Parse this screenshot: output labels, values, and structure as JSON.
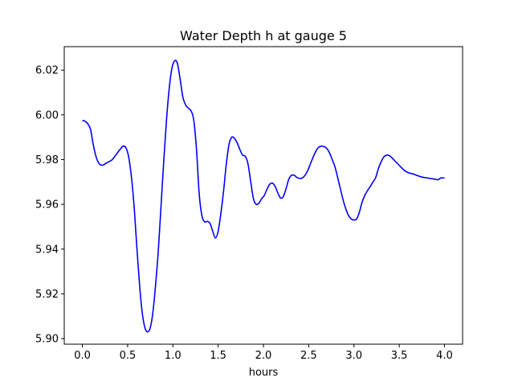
{
  "chart_data": {
    "type": "line",
    "title": "Water Depth h at gauge 5",
    "xlabel": "hours",
    "ylabel": "",
    "xlim": [
      -0.2,
      4.2
    ],
    "ylim": [
      5.8975,
      6.0305
    ],
    "xticks": [
      0.0,
      0.5,
      1.0,
      1.5,
      2.0,
      2.5,
      3.0,
      3.5,
      4.0
    ],
    "xtick_labels": [
      "0.0",
      "0.5",
      "1.0",
      "1.5",
      "2.0",
      "2.5",
      "3.0",
      "3.5",
      "4.0"
    ],
    "yticks": [
      5.9,
      5.92,
      5.94,
      5.96,
      5.98,
      6.0,
      6.02
    ],
    "ytick_labels": [
      "5.90",
      "5.92",
      "5.94",
      "5.96",
      "5.98",
      "6.00",
      "6.02"
    ],
    "grid": false,
    "series": [
      {
        "color": "#0000ff",
        "x": [
          0.0,
          0.03,
          0.06,
          0.09,
          0.12,
          0.15,
          0.18,
          0.21,
          0.24,
          0.27,
          0.3,
          0.33,
          0.36,
          0.39,
          0.42,
          0.45,
          0.48,
          0.51,
          0.54,
          0.57,
          0.6,
          0.63,
          0.66,
          0.69,
          0.72,
          0.75,
          0.78,
          0.81,
          0.84,
          0.87,
          0.9,
          0.93,
          0.96,
          0.99,
          1.02,
          1.05,
          1.08,
          1.11,
          1.14,
          1.17,
          1.2,
          1.23,
          1.26,
          1.29,
          1.32,
          1.35,
          1.38,
          1.41,
          1.44,
          1.47,
          1.5,
          1.53,
          1.56,
          1.59,
          1.62,
          1.65,
          1.68,
          1.71,
          1.74,
          1.77,
          1.8,
          1.83,
          1.86,
          1.89,
          1.92,
          1.95,
          1.98,
          2.01,
          2.04,
          2.07,
          2.1,
          2.13,
          2.16,
          2.19,
          2.22,
          2.25,
          2.28,
          2.31,
          2.34,
          2.37,
          2.4,
          2.43,
          2.46,
          2.49,
          2.52,
          2.55,
          2.58,
          2.61,
          2.64,
          2.67,
          2.7,
          2.73,
          2.76,
          2.79,
          2.82,
          2.85,
          2.88,
          2.91,
          2.94,
          2.97,
          3.0,
          3.03,
          3.06,
          3.09,
          3.12,
          3.15,
          3.18,
          3.21,
          3.24,
          3.27,
          3.3,
          3.33,
          3.36,
          3.39,
          3.42,
          3.45,
          3.48,
          3.51,
          3.54,
          3.57,
          3.6,
          3.63,
          3.66,
          3.69,
          3.72,
          3.75,
          3.78,
          3.81,
          3.84,
          3.87,
          3.9,
          3.93,
          3.96,
          3.99,
          4.0
        ],
        "y": [
          5.9975,
          5.9972,
          5.996,
          5.9935,
          5.9868,
          5.9815,
          5.9785,
          5.9775,
          5.9778,
          5.9786,
          5.9792,
          5.98,
          5.9815,
          5.9832,
          5.9847,
          5.986,
          5.9854,
          5.9815,
          5.973,
          5.96,
          5.942,
          5.925,
          5.912,
          5.905,
          5.903,
          5.9048,
          5.912,
          5.9245,
          5.94,
          5.96,
          5.98,
          5.998,
          6.012,
          6.021,
          6.0242,
          6.023,
          6.016,
          6.008,
          6.0045,
          6.003,
          6.0018,
          5.9978,
          5.985,
          5.965,
          5.955,
          5.9522,
          5.9524,
          5.9515,
          5.948,
          5.945,
          5.948,
          5.956,
          5.966,
          5.978,
          5.9868,
          5.99,
          5.9895,
          5.9875,
          5.9845,
          5.982,
          5.9815,
          5.978,
          5.97,
          5.9625,
          5.96,
          5.9605,
          5.9625,
          5.964,
          5.9668,
          5.969,
          5.9695,
          5.968,
          5.965,
          5.9628,
          5.9635,
          5.967,
          5.9712,
          5.973,
          5.973,
          5.972,
          5.9716,
          5.9718,
          5.973,
          5.9752,
          5.9782,
          5.9812,
          5.9838,
          5.9855,
          5.986,
          5.9858,
          5.985,
          5.983,
          5.98,
          5.9768,
          5.972,
          5.967,
          5.962,
          5.958,
          5.955,
          5.9535,
          5.953,
          5.9535,
          5.9565,
          5.961,
          5.964,
          5.9662,
          5.968,
          5.97,
          5.972,
          5.976,
          5.979,
          5.9812,
          5.982,
          5.9818,
          5.9808,
          5.9795,
          5.9783,
          5.977,
          5.9758,
          5.9748,
          5.9742,
          5.9738,
          5.9735,
          5.973,
          5.9726,
          5.9722,
          5.972,
          5.9718,
          5.9716,
          5.9714,
          5.9712,
          5.971,
          5.9718,
          5.9718,
          5.9718
        ]
      }
    ]
  }
}
